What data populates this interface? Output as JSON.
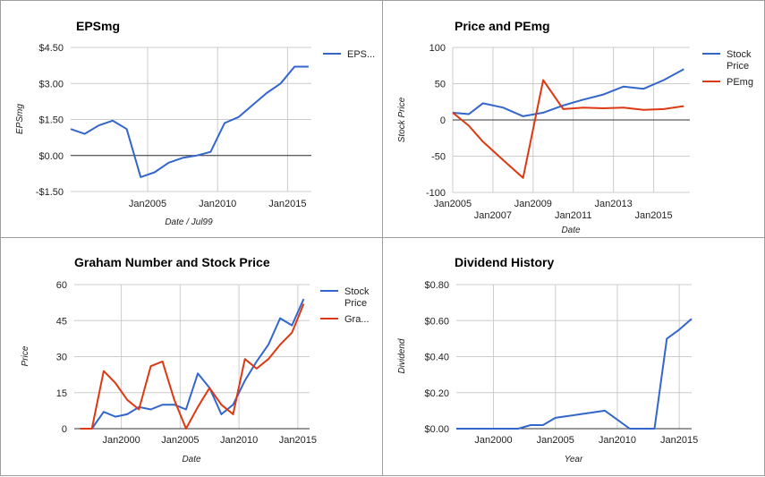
{
  "chart_data": [
    {
      "type": "line",
      "title": "EPSmg",
      "xlabel": "Date / Jul99",
      "ylabel": "EPSmg",
      "x_range": [
        1999.5,
        2016.7
      ],
      "ylim": [
        -1.5,
        4.5
      ],
      "y_ticks": [
        -1.5,
        0,
        1.5,
        3,
        4.5
      ],
      "y_tick_labels": [
        "-$1.50",
        "$0.00",
        "$1.50",
        "$3.00",
        "$4.50"
      ],
      "x_ticks": [
        2005,
        2010,
        2015
      ],
      "x_tick_labels": [
        "Jan2005",
        "Jan2010",
        "Jan2015"
      ],
      "baseline": 0,
      "grid": true,
      "legend_position": "right",
      "series": [
        {
          "name": "EPS...",
          "color": "#3366cc",
          "x": [
            1999.5,
            2000.5,
            2001.5,
            2002.5,
            2003.5,
            2004.5,
            2005.5,
            2006.5,
            2007.5,
            2008.5,
            2009.5,
            2010.5,
            2011.5,
            2012.5,
            2013.5,
            2014.5,
            2015.5,
            2016.5
          ],
          "values": [
            1.1,
            0.9,
            1.25,
            1.45,
            1.1,
            -0.9,
            -0.7,
            -0.3,
            -0.1,
            0.0,
            0.15,
            1.35,
            1.6,
            2.1,
            2.6,
            3.0,
            3.7,
            3.7
          ]
        }
      ]
    },
    {
      "type": "line",
      "title": "Price and PEmg",
      "xlabel": "Date",
      "ylabel": "Stock Price",
      "x_range": [
        2005,
        2016.8
      ],
      "ylim": [
        -100,
        100
      ],
      "y_ticks": [
        -100,
        -50,
        0,
        50,
        100
      ],
      "y_tick_labels": [
        "-100",
        "-50",
        "0",
        "50",
        "100"
      ],
      "x_ticks": [
        2005,
        2007,
        2009,
        2011,
        2013,
        2015
      ],
      "x_tick_labels": [
        "Jan2005",
        "Jan2007",
        "Jan2009",
        "Jan2011",
        "Jan2013",
        "Jan2015"
      ],
      "baseline": 0,
      "grid": true,
      "legend_position": "right",
      "series": [
        {
          "name": "Stock Price",
          "color": "#3366cc",
          "x": [
            2005,
            2005.8,
            2006.5,
            2007.5,
            2008.5,
            2009.5,
            2010.5,
            2011.5,
            2012.5,
            2013.5,
            2014.5,
            2015.5,
            2016.5
          ],
          "values": [
            10,
            8,
            23,
            17,
            5,
            10,
            20,
            28,
            35,
            46,
            43,
            55,
            70
          ]
        },
        {
          "name": "PEmg",
          "color": "#dc3912",
          "x": [
            2005,
            2005.8,
            2006.5,
            2007.5,
            2008.5,
            2009.5,
            2010.5,
            2011.5,
            2012.5,
            2013.5,
            2014.5,
            2015.5,
            2016.5
          ],
          "values": [
            10,
            -8,
            -30,
            -55,
            -80,
            55,
            15,
            17,
            16,
            17,
            14,
            15,
            19
          ]
        }
      ]
    },
    {
      "type": "line",
      "title": "Graham Number and Stock Price",
      "xlabel": "Date",
      "ylabel": "Price",
      "x_range": [
        1996,
        2016
      ],
      "ylim": [
        0,
        60
      ],
      "y_ticks": [
        0,
        15,
        30,
        45,
        60
      ],
      "y_tick_labels": [
        "0",
        "15",
        "30",
        "45",
        "60"
      ],
      "x_ticks": [
        2000,
        2005,
        2010,
        2015
      ],
      "x_tick_labels": [
        "Jan2000",
        "Jan2005",
        "Jan2010",
        "Jan2015"
      ],
      "grid": true,
      "legend_position": "right",
      "series": [
        {
          "name": "Stock Price",
          "color": "#3366cc",
          "x": [
            1996.5,
            1997.5,
            1998.5,
            1999.5,
            2000.5,
            2001.5,
            2002.5,
            2003.5,
            2004.5,
            2005.5,
            2006.5,
            2007.5,
            2008.5,
            2009.5,
            2010.5,
            2011.5,
            2012.5,
            2013.5,
            2014.5,
            2015.5
          ],
          "values": [
            0,
            0,
            7,
            5,
            6,
            9,
            8,
            10,
            10,
            8,
            23,
            17,
            6,
            10,
            20,
            28,
            35,
            46,
            43,
            54
          ]
        },
        {
          "name": "Gra...",
          "color": "#dc3912",
          "x": [
            1996.5,
            1997.5,
            1998.5,
            1999.5,
            2000.5,
            2001.5,
            2002.5,
            2003.5,
            2004.5,
            2005.5,
            2006.5,
            2007.5,
            2008.5,
            2009.5,
            2010.5,
            2011.5,
            2012.5,
            2013.5,
            2014.5,
            2015.5
          ],
          "values": [
            0,
            0,
            24,
            19,
            12,
            8,
            26,
            28,
            12,
            0,
            9,
            17,
            10,
            6,
            29,
            25,
            29,
            35,
            40,
            52
          ]
        }
      ]
    },
    {
      "type": "line",
      "title": "Dividend History",
      "xlabel": "Year",
      "ylabel": "Dividend",
      "x_range": [
        1997,
        2016
      ],
      "ylim": [
        0,
        0.8
      ],
      "y_ticks": [
        0,
        0.2,
        0.4,
        0.6,
        0.8
      ],
      "y_tick_labels": [
        "$0.00",
        "$0.20",
        "$0.40",
        "$0.60",
        "$0.80"
      ],
      "x_ticks": [
        2000,
        2005,
        2010,
        2015
      ],
      "x_tick_labels": [
        "Jan2000",
        "Jan2005",
        "Jan2010",
        "Jan2015"
      ],
      "grid": true,
      "series": [
        {
          "color": "#3366cc",
          "x": [
            1997,
            1998,
            1999,
            2000,
            2001,
            2002,
            2003,
            2004,
            2005,
            2006,
            2007,
            2008,
            2009,
            2010,
            2011,
            2012,
            2013,
            2014,
            2015,
            2016
          ],
          "values": [
            0,
            0,
            0,
            0,
            0,
            0,
            0.02,
            0.02,
            0.06,
            0.07,
            0.08,
            0.09,
            0.1,
            0.05,
            0,
            0,
            0,
            0.5,
            0.55,
            0.61
          ]
        }
      ]
    }
  ]
}
